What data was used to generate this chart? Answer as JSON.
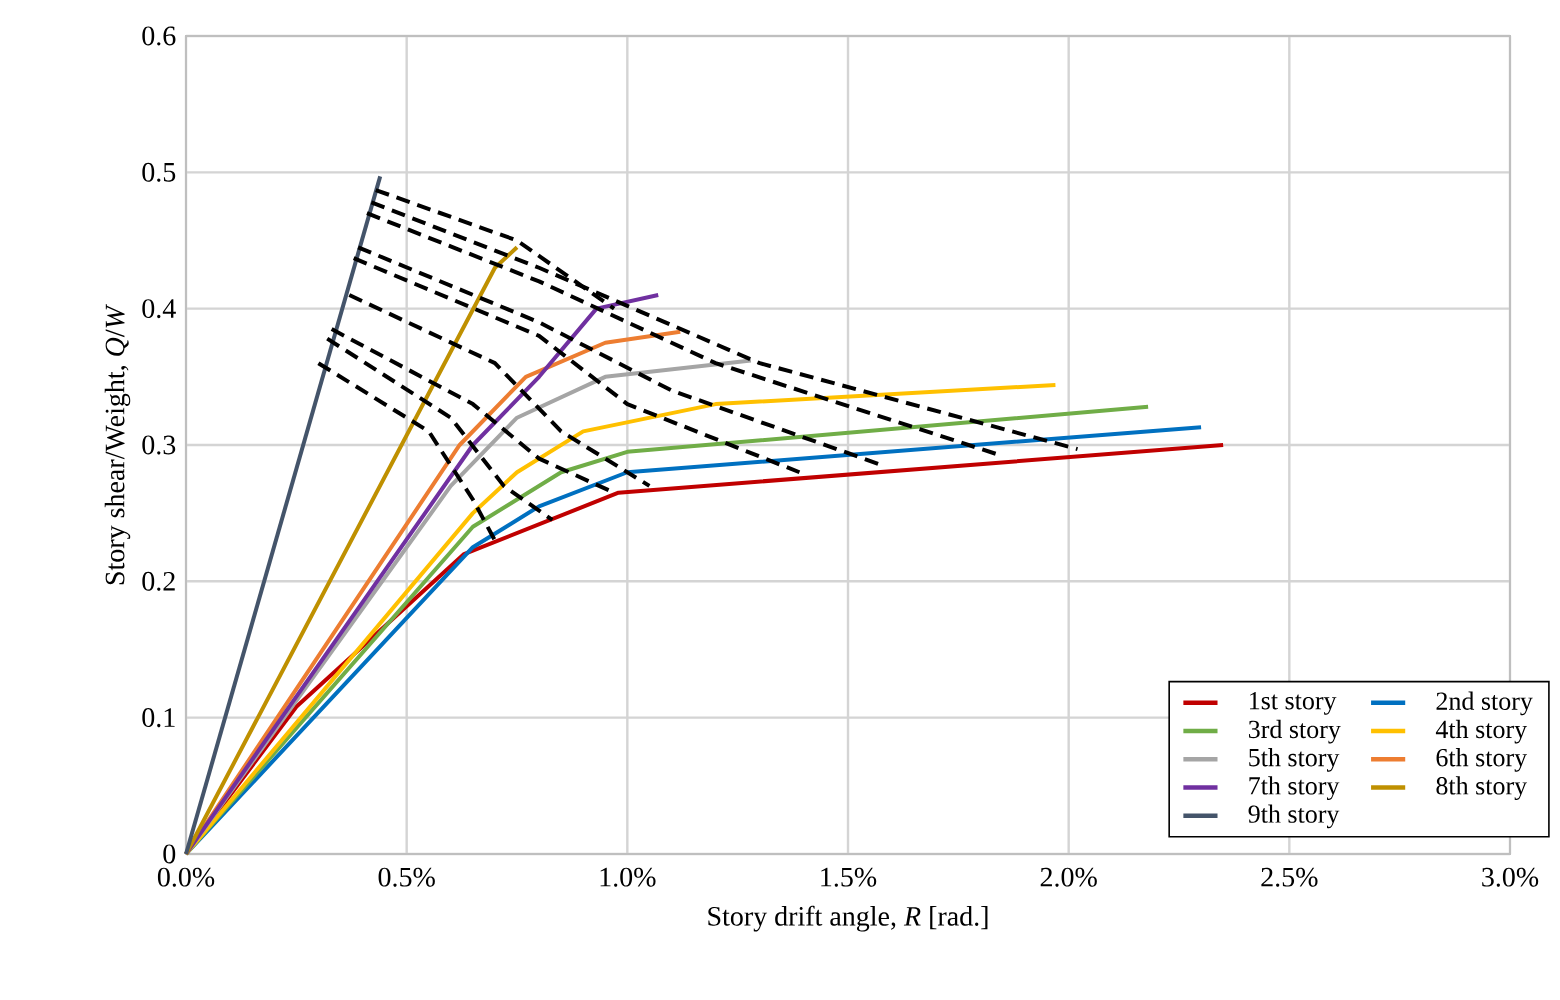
{
  "chart_data": {
    "type": "line",
    "xlabel": "Story drift angle, *R* [rad.]",
    "ylabel": "Story shear/Weight, *Q*/*W*",
    "xlim": [
      0,
      3
    ],
    "ylim": [
      0,
      0.6
    ],
    "xticks": [
      {
        "value": 0,
        "label": "0.0%"
      },
      {
        "value": 0.5,
        "label": "0.5%"
      },
      {
        "value": 1,
        "label": "1.0%"
      },
      {
        "value": 1.5,
        "label": "1.5%"
      },
      {
        "value": 2,
        "label": "2.0%"
      },
      {
        "value": 2.5,
        "label": "2.5%"
      },
      {
        "value": 3,
        "label": "3.0%"
      }
    ],
    "yticks": [
      0,
      0.1,
      0.2,
      0.3,
      0.4,
      0.5,
      0.6
    ],
    "grid": true,
    "legend": "bottom right",
    "marker": "none",
    "series": [
      {
        "name": "1st story",
        "color": "#c00000",
        "x": [
          0,
          0.25,
          0.63,
          0.98,
          2.35
        ],
        "values": [
          0,
          0.108,
          0.22,
          0.265,
          0.3
        ]
      },
      {
        "name": "2nd story",
        "color": "#0070c0",
        "x": [
          0,
          0.65,
          0.8,
          1.0,
          2.3
        ],
        "values": [
          0,
          0.225,
          0.255,
          0.28,
          0.313
        ]
      },
      {
        "name": "3rd story",
        "color": "#70ad47",
        "x": [
          0,
          0.65,
          0.85,
          1.0,
          2.18
        ],
        "values": [
          0,
          0.24,
          0.28,
          0.295,
          0.328
        ]
      },
      {
        "name": "4th story",
        "color": "#ffc000",
        "x": [
          0,
          0.65,
          0.75,
          0.9,
          1.2,
          1.97
        ],
        "values": [
          0,
          0.25,
          0.28,
          0.31,
          0.33,
          0.344
        ]
      },
      {
        "name": "5th story",
        "color": "#a5a5a5",
        "x": [
          0,
          0.6,
          0.75,
          0.95,
          1.28
        ],
        "values": [
          0,
          0.27,
          0.32,
          0.35,
          0.362
        ]
      },
      {
        "name": "6th story",
        "color": "#ed7d31",
        "x": [
          0,
          0.62,
          0.77,
          0.95,
          1.12
        ],
        "values": [
          0,
          0.3,
          0.35,
          0.375,
          0.383
        ]
      },
      {
        "name": "7th story",
        "color": "#7030a0",
        "x": [
          0,
          0.65,
          0.8,
          0.93,
          1.07
        ],
        "values": [
          0,
          0.3,
          0.35,
          0.4,
          0.41
        ]
      },
      {
        "name": "8th story",
        "color": "#bf9000",
        "x": [
          0,
          0.7,
          0.75
        ],
        "values": [
          0,
          0.43,
          0.445
        ]
      },
      {
        "name": "9th story",
        "color": "#44546a",
        "x": [
          0,
          0.44
        ],
        "values": [
          0,
          0.497
        ]
      },
      {
        "color": "#000000",
        "line_style": "dashed",
        "x": [
          0.43,
          0.75,
          0.97
        ],
        "values": [
          0.487,
          0.45,
          0.4
        ]
      },
      {
        "color": "#000000",
        "line_style": "dashed",
        "x": [
          0.42,
          0.8,
          1.3,
          2.02
        ],
        "values": [
          0.478,
          0.43,
          0.36,
          0.297
        ]
      },
      {
        "color": "#000000",
        "line_style": "dashed",
        "x": [
          0.41,
          0.8,
          1.2,
          1.84
        ],
        "values": [
          0.47,
          0.42,
          0.36,
          0.293
        ]
      },
      {
        "color": "#000000",
        "line_style": "dashed",
        "x": [
          0.39,
          0.8,
          1.1,
          1.57
        ],
        "values": [
          0.445,
          0.39,
          0.34,
          0.286
        ]
      },
      {
        "color": "#000000",
        "line_style": "dashed",
        "x": [
          0.38,
          0.8,
          1.0,
          1.39
        ],
        "values": [
          0.437,
          0.38,
          0.33,
          0.28
        ]
      },
      {
        "color": "#000000",
        "line_style": "dashed",
        "x": [
          0.37,
          0.7,
          0.85,
          1.05
        ],
        "values": [
          0.41,
          0.36,
          0.31,
          0.27
        ]
      },
      {
        "color": "#000000",
        "line_style": "dashed",
        "x": [
          0.33,
          0.65,
          0.8,
          0.97
        ],
        "values": [
          0.385,
          0.33,
          0.29,
          0.265
        ]
      },
      {
        "color": "#000000",
        "line_style": "dashed",
        "x": [
          0.32,
          0.6,
          0.72,
          0.83
        ],
        "values": [
          0.378,
          0.32,
          0.27,
          0.245
        ]
      },
      {
        "color": "#000000",
        "line_style": "dashed",
        "x": [
          0.3,
          0.55,
          0.65,
          0.7
        ],
        "values": [
          0.36,
          0.31,
          0.26,
          0.23
        ]
      }
    ]
  }
}
